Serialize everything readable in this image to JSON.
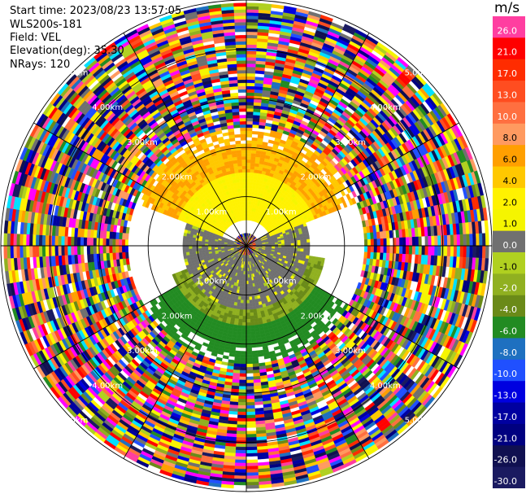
{
  "header": {
    "start_time": "Start time: 2023/08/23 13:57:05",
    "instrument": "WLS200s-181",
    "field": "Field: VEL",
    "elevation": "Elevation(deg): 35.30",
    "nrays": "NRays: 120"
  },
  "colorbar": {
    "unit": "m/s",
    "levels": [
      {
        "label": "26.0",
        "color": "#ff3ea0"
      },
      {
        "label": "21.0",
        "color": "#ff0000"
      },
      {
        "label": "17.0",
        "color": "#ff2c00"
      },
      {
        "label": "13.0",
        "color": "#ff4d20"
      },
      {
        "label": "10.0",
        "color": "#ff6f40"
      },
      {
        "label": "8.0",
        "color": "#ff9a60"
      },
      {
        "label": "6.0",
        "color": "#ff9f00"
      },
      {
        "label": "4.0",
        "color": "#ffc800"
      },
      {
        "label": "2.0",
        "color": "#fff200"
      },
      {
        "label": "1.0",
        "color": "#f5f500"
      },
      {
        "label": "0.0",
        "color": "#707070"
      },
      {
        "label": "-1.0",
        "color": "#b0d020"
      },
      {
        "label": "-2.0",
        "color": "#90b020"
      },
      {
        "label": "-4.0",
        "color": "#6a8a18"
      },
      {
        "label": "-6.0",
        "color": "#228b22"
      },
      {
        "label": "-8.0",
        "color": "#1e70c0"
      },
      {
        "label": "-10.0",
        "color": "#2050ff"
      },
      {
        "label": "-13.0",
        "color": "#0000e0"
      },
      {
        "label": "-17.0",
        "color": "#0000a0"
      },
      {
        "label": "-21.0",
        "color": "#000080"
      },
      {
        "label": "-26.0",
        "color": "#101050"
      },
      {
        "label": "-30.0",
        "color": "#1a1a60"
      }
    ]
  },
  "chart_data": {
    "type": "heatmap",
    "projection": "polar PPI",
    "nrays": 120,
    "range_rings_km": [
      1.0,
      2.0,
      3.0,
      4.0,
      5.0
    ],
    "range_ring_labels": [
      "1.00km",
      "2.00km",
      "3.00km",
      "4.00km",
      "5.00km"
    ],
    "spokes_deg": [
      0,
      30,
      60,
      90,
      120,
      150,
      180,
      210,
      240,
      270,
      300,
      330
    ],
    "clean_data_max_km": 2.4,
    "noise_start_km": 2.4,
    "max_range_km": 5.0,
    "velocity_regions": [
      {
        "description": "north outer",
        "range_km": [
          1.5,
          2.4
        ],
        "bearing_deg": [
          290,
          70
        ],
        "value_ms": 5.0
      },
      {
        "description": "north inner",
        "range_km": [
          0.5,
          1.5
        ],
        "bearing_deg": [
          290,
          70
        ],
        "value_ms": 2.0
      },
      {
        "description": "west/east grey",
        "range_km": [
          0.2,
          1.3
        ],
        "bearing_deg": [
          60,
          290
        ],
        "value_ms": 0.0
      },
      {
        "description": "south olive",
        "range_km": [
          0.3,
          1.6
        ],
        "bearing_deg": [
          100,
          250
        ],
        "value_ms": -3.0
      },
      {
        "description": "south green",
        "range_km": [
          1.6,
          2.4
        ],
        "bearing_deg": [
          120,
          240
        ],
        "value_ms": -6.0
      }
    ]
  }
}
